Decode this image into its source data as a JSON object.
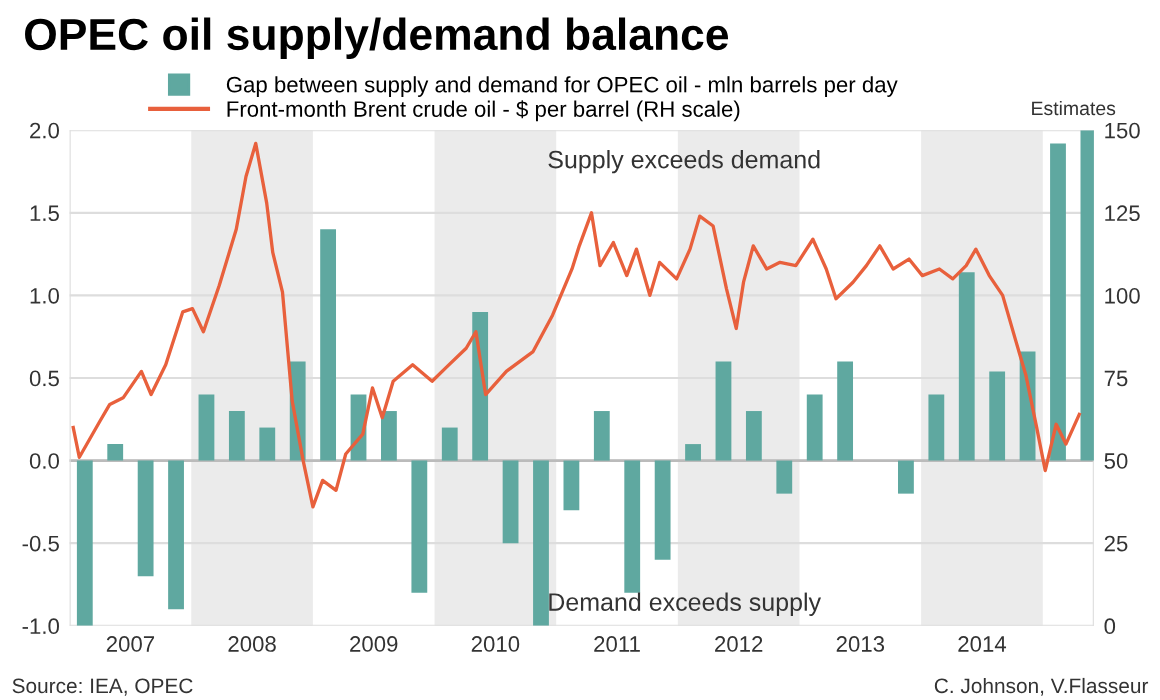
{
  "chart_data": {
    "type": "bar",
    "title": "OPEC oil supply/demand balance",
    "series": [
      {
        "name": "Gap between supply and demand for OPEC oil - mln barrels per day",
        "color": "#5fa8a0",
        "x": [
          2007.125,
          2007.375,
          2007.625,
          2007.875,
          2008.125,
          2008.375,
          2008.625,
          2008.875,
          2009.125,
          2009.375,
          2009.625,
          2009.875,
          2010.125,
          2010.375,
          2010.625,
          2010.875,
          2011.125,
          2011.375,
          2011.625,
          2011.875,
          2012.125,
          2012.375,
          2012.625,
          2012.875,
          2013.125,
          2013.375,
          2013.625,
          2013.875,
          2014.125,
          2014.375,
          2014.625,
          2014.875,
          2015.125,
          2015.375
        ],
        "values": [
          -1.0,
          0.1,
          -0.7,
          -0.9,
          0.4,
          0.3,
          0.2,
          0.6,
          1.4,
          0.4,
          0.3,
          -0.8,
          0.2,
          0.9,
          -0.5,
          -1.0,
          -0.3,
          0.3,
          -0.8,
          -0.6,
          0.1,
          0.6,
          0.3,
          -0.2,
          0.4,
          0.6,
          null,
          -0.2,
          0.4,
          1.14,
          0.54,
          0.66,
          1.92,
          2.0
        ]
      },
      {
        "name": "Front-month Brent crude oil - $ per barrel (RH scale)",
        "type": "line",
        "axis": "y2",
        "color": "#e8603c",
        "x": [
          2007.03,
          2007.08,
          2007.25,
          2007.33,
          2007.44,
          2007.59,
          2007.67,
          2007.79,
          2007.93,
          2008.01,
          2008.1,
          2008.23,
          2008.37,
          2008.45,
          2008.53,
          2008.62,
          2008.67,
          2008.75,
          2008.83,
          2008.92,
          2009.0,
          2009.08,
          2009.19,
          2009.27,
          2009.41,
          2009.49,
          2009.57,
          2009.66,
          2009.82,
          2009.98,
          2010.09,
          2010.26,
          2010.34,
          2010.42,
          2010.59,
          2010.81,
          2010.97,
          2011.13,
          2011.19,
          2011.29,
          2011.36,
          2011.47,
          2011.58,
          2011.66,
          2011.77,
          2011.85,
          2011.99,
          2012.1,
          2012.18,
          2012.29,
          2012.4,
          2012.48,
          2012.54,
          2012.62,
          2012.73,
          2012.84,
          2012.97,
          2013.11,
          2013.22,
          2013.3,
          2013.44,
          2013.55,
          2013.66,
          2013.77,
          2013.9,
          2014.01,
          2014.15,
          2014.26,
          2014.37,
          2014.45,
          2014.56,
          2014.67,
          2014.78,
          2014.86,
          2014.95,
          2015.02,
          2015.11,
          2015.19,
          2015.3
        ],
        "values": [
          60,
          51,
          62,
          67,
          69,
          77,
          70,
          79,
          95,
          96,
          89,
          103,
          120,
          136,
          146,
          128,
          113,
          101,
          68,
          50,
          36,
          44,
          41,
          52,
          58,
          72,
          63,
          74,
          79,
          74,
          78,
          84,
          89,
          70,
          77,
          83,
          94,
          108,
          115,
          125,
          109,
          116,
          106,
          114,
          100,
          110,
          105,
          114,
          124,
          121,
          102,
          90,
          104,
          115,
          108,
          110,
          109,
          117,
          108,
          99,
          104,
          109,
          115,
          108,
          111,
          106,
          108,
          105,
          109,
          114,
          106,
          100,
          86,
          76,
          60,
          47,
          61,
          55,
          64
        ]
      }
    ],
    "xlim": [
      2007,
      2015.42
    ],
    "xticks": [
      {
        "value": 2007.5,
        "label": "2007"
      },
      {
        "value": 2008.5,
        "label": "2008"
      },
      {
        "value": 2009.5,
        "label": "2009"
      },
      {
        "value": 2010.5,
        "label": "2010"
      },
      {
        "value": 2011.5,
        "label": "2011"
      },
      {
        "value": 2012.5,
        "label": "2012"
      },
      {
        "value": 2013.5,
        "label": "2013"
      },
      {
        "value": 2014.5,
        "label": "2014"
      }
    ],
    "ylim": [
      -1.0,
      2.0
    ],
    "yticks": [
      {
        "value": -1.0,
        "label": "-1.0"
      },
      -0.5,
      {
        "value": 0.0,
        "label": "0.0"
      },
      0.5,
      {
        "value": 1.0,
        "label": "1.0"
      },
      1.5,
      {
        "value": 2.0,
        "label": "2.0"
      }
    ],
    "y2lim": [
      0,
      150
    ],
    "y2ticks": [
      0,
      25,
      50,
      75,
      100,
      125,
      150
    ],
    "bands": [
      {
        "axis": "x",
        "from": 2008,
        "to": 2009,
        "color": "#ebebeb"
      },
      {
        "axis": "x",
        "from": 2010,
        "to": 2011,
        "color": "#ebebeb"
      },
      {
        "axis": "x",
        "from": 2012,
        "to": 2013,
        "color": "#ebebeb"
      },
      {
        "axis": "x",
        "from": 2014,
        "to": 2015,
        "color": "#ebebeb"
      }
    ],
    "annotations": [
      "Supply exceeds demand",
      "Demand exceeds supply",
      {
        "text": "Estimates",
        "x": 2015.25,
        "y": 2.0
      },
      "Source: IEA, OPEC",
      "C. Johnson, V.Flasseur"
    ],
    "grid": "y",
    "legend": "top left"
  }
}
